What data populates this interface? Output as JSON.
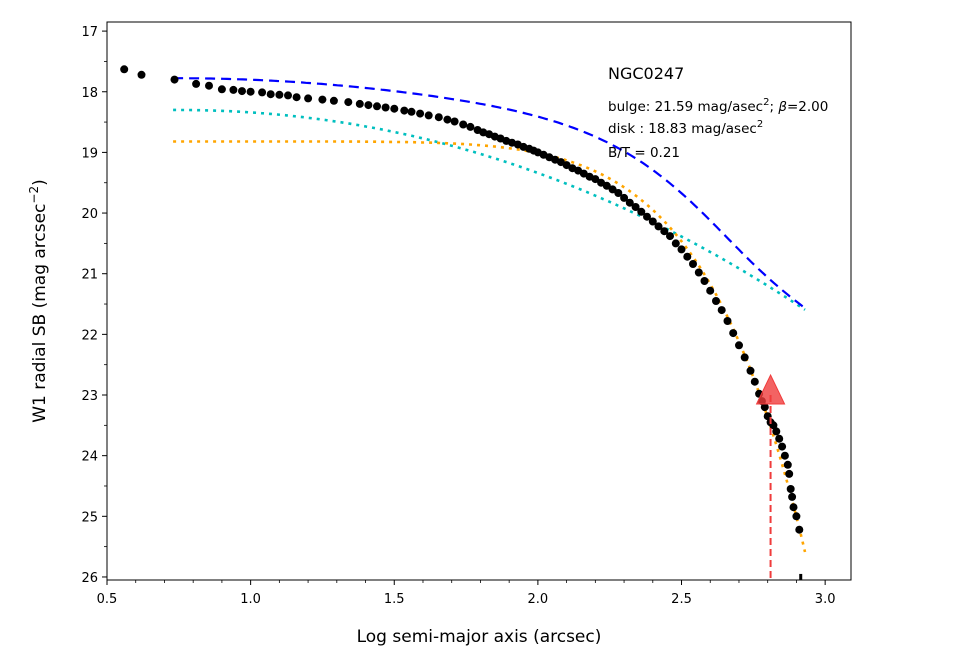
{
  "chart_data": {
    "type": "scatter",
    "title": "",
    "xlabel": "Log semi-major axis (arcsec)",
    "ylabel_main": "W1 radial SB (mag arcsec",
    "ylabel_sup": "−2",
    "ylabel_close": ")",
    "xlim": [
      0.5,
      3.09
    ],
    "ylim": [
      26.05,
      16.85
    ],
    "y_inverted": true,
    "grid": false,
    "x_ticks": [
      "0.5",
      "1.0",
      "1.5",
      "2.0",
      "2.5",
      "3.0"
    ],
    "x_tick_values": [
      0.5,
      1.0,
      1.5,
      2.0,
      2.5,
      3.0
    ],
    "y_ticks": [
      "17",
      "18",
      "19",
      "20",
      "21",
      "22",
      "23",
      "24",
      "25",
      "26"
    ],
    "y_tick_values": [
      17,
      18,
      19,
      20,
      21,
      22,
      23,
      24,
      25,
      26
    ],
    "annotations": {
      "galaxy": "NGC0247",
      "bulge_pre": "bulge: 21.59 mag/asec",
      "bulge_sup": "2",
      "bulge_mid": "; ",
      "bulge_beta": "β",
      "bulge_post": "=2.00",
      "disk_pre": "disk  : 18.83 mag/asec",
      "disk_sup": "2",
      "bt": "B/T = 0.21"
    },
    "marker": {
      "x": 2.81,
      "y": 23.0,
      "color": "#f03c3c"
    },
    "series": [
      {
        "kind": "points",
        "color": "#000000",
        "x": [
          0.56,
          0.62,
          0.735,
          0.81,
          0.855,
          0.9,
          0.94,
          0.97,
          1.0,
          1.04,
          1.07,
          1.1,
          1.13,
          1.16,
          1.2,
          1.25,
          1.29,
          1.34,
          1.38,
          1.41,
          1.44,
          1.47,
          1.5,
          1.535,
          1.56,
          1.59,
          1.62,
          1.655,
          1.685,
          1.71,
          1.74,
          1.765,
          1.79,
          1.81,
          1.83,
          1.85,
          1.87,
          1.89,
          1.91,
          1.93,
          1.95,
          1.97,
          1.985,
          2.0,
          2.02,
          2.04,
          2.06,
          2.08,
          2.1,
          2.12,
          2.14,
          2.16,
          2.18,
          2.2,
          2.22,
          2.24,
          2.26,
          2.28,
          2.3,
          2.32,
          2.34,
          2.36,
          2.38,
          2.4,
          2.42,
          2.44,
          2.46,
          2.48,
          2.5,
          2.52,
          2.54,
          2.56,
          2.58,
          2.6,
          2.62,
          2.64,
          2.66,
          2.68,
          2.7,
          2.72,
          2.74,
          2.755,
          2.77,
          2.78,
          2.79,
          2.8,
          2.81,
          2.82,
          2.83,
          2.84,
          2.85,
          2.86,
          2.87,
          2.875,
          2.88,
          2.885,
          2.89,
          2.9,
          2.91
        ],
        "y": [
          17.63,
          17.72,
          17.8,
          17.87,
          17.9,
          17.96,
          17.97,
          17.99,
          18.0,
          18.01,
          18.04,
          18.05,
          18.06,
          18.09,
          18.11,
          18.13,
          18.15,
          18.17,
          18.2,
          18.22,
          18.24,
          18.26,
          18.28,
          18.31,
          18.33,
          18.36,
          18.39,
          18.42,
          18.46,
          18.49,
          18.54,
          18.58,
          18.63,
          18.67,
          18.7,
          18.74,
          18.77,
          18.81,
          18.84,
          18.87,
          18.91,
          18.94,
          18.97,
          19.0,
          19.04,
          19.08,
          19.12,
          19.16,
          19.21,
          19.26,
          19.3,
          19.35,
          19.4,
          19.44,
          19.5,
          19.55,
          19.61,
          19.67,
          19.75,
          19.83,
          19.9,
          19.98,
          20.06,
          20.14,
          20.22,
          20.3,
          20.38,
          20.5,
          20.6,
          20.72,
          20.84,
          20.98,
          21.12,
          21.28,
          21.45,
          21.6,
          21.78,
          21.98,
          22.18,
          22.38,
          22.6,
          22.78,
          22.98,
          23.1,
          23.2,
          23.35,
          23.45,
          23.5,
          23.6,
          23.72,
          23.85,
          24.0,
          24.15,
          24.3,
          24.55,
          24.68,
          24.85,
          25.0,
          25.22
        ]
      },
      {
        "kind": "model-total",
        "color": "#0000ff",
        "dash": "dashed"
      },
      {
        "kind": "bulge",
        "color": "#00bfbf",
        "dash": "dotted"
      },
      {
        "kind": "disk",
        "color": "#ffa500",
        "dash": "dotted"
      }
    ]
  }
}
